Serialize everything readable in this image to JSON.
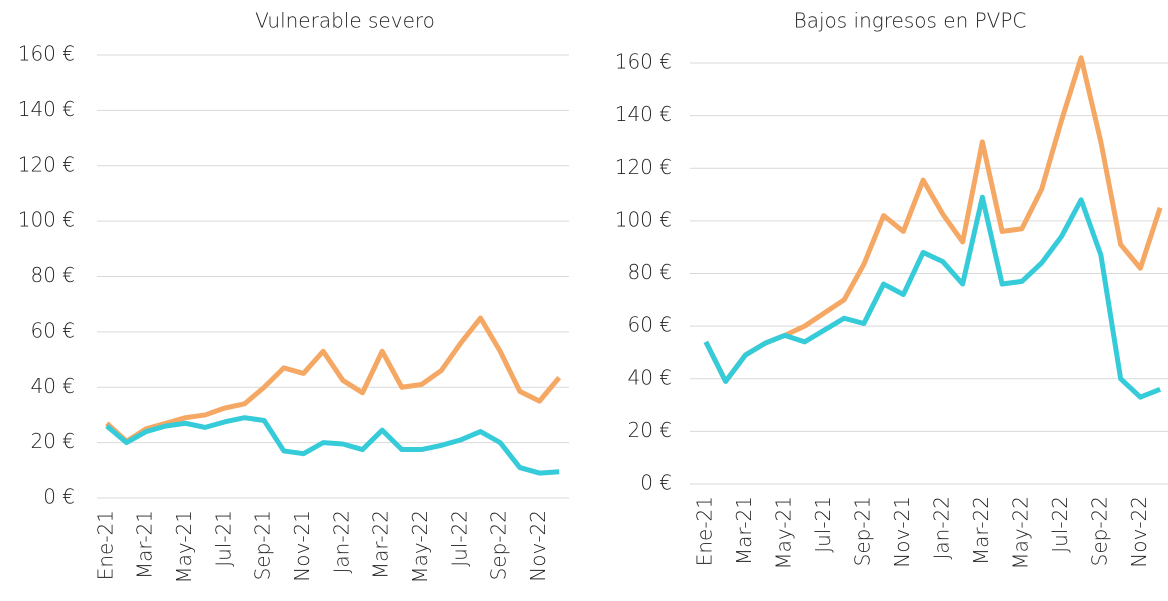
{
  "chart_data": [
    {
      "type": "line",
      "title": "Vulnerable severo",
      "categories": [
        "Ene-21",
        null,
        "Mar-21",
        null,
        "May-21",
        null,
        "Jul-21",
        null,
        "Sep-21",
        null,
        "Nov-21",
        null,
        "Jan-22",
        null,
        "Mar-22",
        null,
        "May-22",
        null,
        "Jul-22",
        null,
        "Sep-22",
        null,
        "Nov-22",
        null
      ],
      "series": [
        {
          "color": "#f5a764",
          "values": [
            27,
            20.5,
            25,
            27,
            29,
            30,
            32.5,
            34,
            40,
            47,
            45,
            53,
            42.5,
            38,
            53,
            40,
            41,
            46,
            56,
            65,
            53,
            38.5,
            35,
            43.5
          ]
        },
        {
          "color": "#36cbd8",
          "values": [
            26,
            20,
            24,
            26,
            27,
            25.5,
            27.5,
            29,
            28,
            17,
            16,
            20,
            19.5,
            17.5,
            24.5,
            17.5,
            17.5,
            19,
            21,
            24,
            20,
            11,
            9,
            9.5
          ]
        }
      ],
      "ylim": [
        0,
        160
      ],
      "yticks": [
        {
          "value": 0,
          "label": "0 €"
        },
        {
          "value": 20,
          "label": "20 €"
        },
        {
          "value": 40,
          "label": "40 €"
        },
        {
          "value": 60,
          "label": "60 €"
        },
        {
          "value": 80,
          "label": "80 €"
        },
        {
          "value": 100,
          "label": "100 €"
        },
        {
          "value": 120,
          "label": "120 €"
        },
        {
          "value": 140,
          "label": "140 €"
        },
        {
          "value": 160,
          "label": "160 €"
        }
      ],
      "grid": true
    },
    {
      "type": "line",
      "title": "Bajos ingresos en PVPC",
      "categories": [
        "Ene-21",
        null,
        "Mar-21",
        null,
        "May-21",
        null,
        "Jul-21",
        null,
        "Sep-21",
        null,
        "Nov-21",
        null,
        "Jan-22",
        null,
        "Mar-22",
        null,
        "May-22",
        null,
        "Jul-22",
        null,
        "Sep-22",
        null,
        "Nov-22",
        null
      ],
      "series": [
        {
          "color": "#f5a764",
          "values": [
            54,
            39,
            49,
            53.5,
            56.5,
            60,
            65,
            70,
            83.5,
            102,
            96,
            115.5,
            102.5,
            92,
            130,
            96,
            97,
            112,
            138,
            162,
            130,
            91,
            82,
            105
          ]
        },
        {
          "color": "#36cbd8",
          "values": [
            54,
            39,
            49,
            53.5,
            56.5,
            54,
            58.5,
            63,
            61,
            76,
            72,
            88,
            84.5,
            76,
            109,
            76,
            77,
            84,
            94,
            108,
            87,
            40,
            33,
            36
          ]
        }
      ],
      "ylim": [
        0,
        160
      ],
      "yticks": [
        {
          "value": 0,
          "label": "0 €"
        },
        {
          "value": 20,
          "label": "20 €"
        },
        {
          "value": 40,
          "label": "40 €"
        },
        {
          "value": 60,
          "label": "60 €"
        },
        {
          "value": 80,
          "label": "80 €"
        },
        {
          "value": 100,
          "label": "100 €"
        },
        {
          "value": 120,
          "label": "120 €"
        },
        {
          "value": 140,
          "label": "140 €"
        },
        {
          "value": 160,
          "label": "160 €"
        }
      ],
      "grid": true
    }
  ]
}
